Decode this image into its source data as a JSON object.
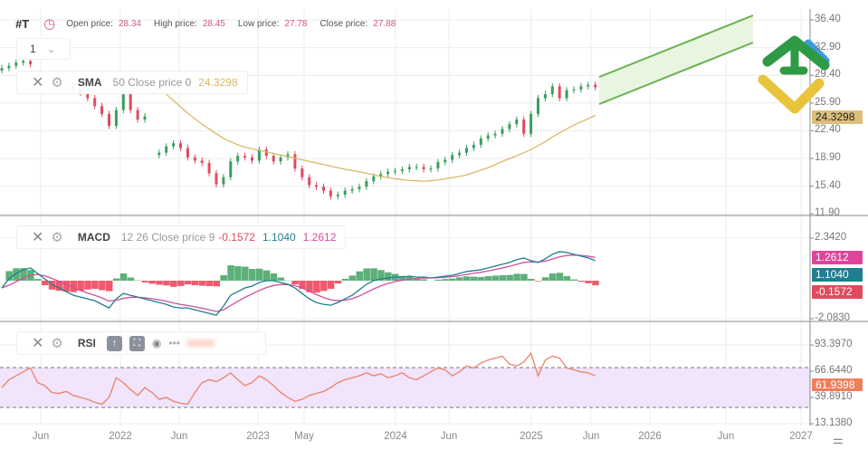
{
  "header": {
    "symbol": "#T",
    "open_label": "Open price:",
    "open": "28.34",
    "high_label": "High price:",
    "high": "28.45",
    "low_label": "Low price:",
    "low": "27.78",
    "close_label": "Close price:",
    "close": "27.88"
  },
  "timeframe": {
    "value": "1"
  },
  "indicators": {
    "sma": {
      "name": "SMA",
      "params": "50 Close price 0",
      "value": "24.3298"
    },
    "macd": {
      "name": "MACD",
      "params": "12 26 Close price 9",
      "hist": "-0.1572",
      "macd": "1.1040",
      "signal": "1.2612"
    },
    "rsi": {
      "name": "RSI"
    }
  },
  "price_axis": [
    "36.40",
    "32.90",
    "29.40",
    "25.90",
    "22.40",
    "18.90",
    "15.40",
    "11.90"
  ],
  "macd_axis": [
    "2.3420",
    "-2.0830"
  ],
  "rsi_axis": [
    "93.3970",
    "66.6440",
    "39.8910",
    "13.1380"
  ],
  "tags": {
    "sma": "24.3298",
    "macd_signal": "1.2612",
    "macd": "1.1040",
    "hist": "-0.1572",
    "rsi": "61.9398"
  },
  "time_axis": [
    "Jun",
    "2022",
    "Jun",
    "2023",
    "May",
    "2024",
    "Jun",
    "2025",
    "Jun",
    "2026",
    "Jun",
    "2027"
  ],
  "colors": {
    "up": "#3a9e5e",
    "down": "#e04a5f",
    "sma": "#d9b86a",
    "macd": "#1e7f8f",
    "signal": "#d0509a",
    "rsi": "#e8846a",
    "rsi_band": "#f1e4fb",
    "channel": "#6ab04c"
  },
  "chart_data": [
    {
      "type": "candlestick",
      "title": "#T",
      "ylim": [
        11.9,
        36.4
      ],
      "close": [
        30.3,
        30.6,
        31,
        31.2,
        30.8,
        null,
        null,
        null,
        null,
        null,
        28,
        27.2,
        26.5,
        25.5,
        24.5,
        23,
        25,
        27,
        25,
        23.8,
        24.2,
        null,
        19.6,
        20.4,
        20.8,
        20.2,
        19,
        18.6,
        18.3,
        17,
        15.6,
        16.5,
        18.5,
        19.2,
        19,
        18.6,
        20,
        19.2,
        18.5,
        19,
        19.4,
        17.6,
        16.5,
        15.5,
        15.3,
        14.8,
        14.1,
        14.3,
        14.8,
        15,
        15.3,
        16,
        16.6,
        16.9,
        17.2,
        17.3,
        17.5,
        17.8,
        17.8,
        17.5,
        17.6,
        18.4,
        18.7,
        19.3,
        19.6,
        20.2,
        20.6,
        21.4,
        21.8,
        22,
        22.6,
        23.2,
        23.8,
        22,
        24.5,
        26.5,
        27,
        28,
        26.5,
        27.5,
        27.6,
        28,
        28.2,
        27.88
      ],
      "sma_50": [
        null,
        null,
        null,
        null,
        null,
        null,
        null,
        null,
        null,
        null,
        null,
        null,
        null,
        null,
        null,
        null,
        null,
        null,
        null,
        null,
        null,
        null,
        27.8,
        27,
        26.2,
        25.4,
        24.6,
        23.9,
        23.2,
        22.6,
        22,
        21.4,
        21,
        20.6,
        20.3,
        20.1,
        19.9,
        19.7,
        19.5,
        19.3,
        19.1,
        18.9,
        18.7,
        18.5,
        18.3,
        18.1,
        17.9,
        17.7,
        17.5,
        17.35,
        17.2,
        17,
        16.8,
        16.6,
        16.45,
        16.3,
        16.2,
        16.1,
        16.05,
        16,
        16.05,
        16.15,
        16.3,
        16.45,
        16.6,
        16.8,
        17.1,
        17.4,
        17.7,
        18.1,
        18.5,
        18.85,
        19.2,
        19.6,
        20,
        20.5,
        21,
        21.6,
        22.1,
        22.6,
        23.1,
        23.5,
        23.9,
        24.3298
      ]
    },
    {
      "type": "line",
      "title": "MACD",
      "ylim": [
        -2.083,
        2.342
      ],
      "macd": [
        -0.4,
        0.1,
        0.4,
        0.6,
        0.7,
        0.4,
        0.1,
        -0.2,
        -0.4,
        -0.6,
        -0.8,
        -0.9,
        -1.0,
        -1.1,
        -1.3,
        -1.5,
        -1.0,
        -0.7,
        -0.8,
        -0.9,
        -1.0,
        -1.1,
        -1.2,
        -1.3,
        -1.45,
        -1.5,
        -1.5,
        -1.6,
        -1.7,
        -1.8,
        -1.9,
        -1.4,
        -0.8,
        -0.6,
        -0.4,
        -0.3,
        -0.1,
        0.0,
        0.0,
        -0.1,
        -0.2,
        -0.4,
        -0.7,
        -1.0,
        -1.2,
        -1.3,
        -1.35,
        -1.2,
        -1.0,
        -0.8,
        -0.5,
        -0.2,
        0.0,
        0.1,
        0.15,
        0.2,
        0.2,
        0.25,
        0.2,
        0.2,
        0.15,
        0.2,
        0.25,
        0.3,
        0.4,
        0.5,
        0.55,
        0.6,
        0.7,
        0.8,
        0.9,
        1.0,
        1.15,
        1.25,
        1.1,
        1.0,
        1.2,
        1.45,
        1.6,
        1.55,
        1.45,
        1.35,
        1.25,
        1.104
      ]
    },
    {
      "type": "line",
      "title": "RSI",
      "ylim": [
        13.138,
        93.397
      ],
      "bands": [
        30,
        70
      ],
      "rsi": [
        50,
        58,
        62,
        66,
        70,
        55,
        52,
        45,
        44,
        46,
        42,
        40,
        38,
        35,
        33,
        40,
        60,
        55,
        48,
        42,
        50,
        45,
        38,
        40,
        36,
        34,
        33,
        45,
        55,
        58,
        56,
        60,
        65,
        58,
        52,
        55,
        62,
        58,
        52,
        45,
        40,
        36,
        38,
        42,
        44,
        46,
        50,
        55,
        58,
        60,
        62,
        65,
        62,
        64,
        60,
        62,
        65,
        60,
        58,
        62,
        66,
        70,
        68,
        62,
        66,
        72,
        70,
        75,
        78,
        80,
        82,
        74,
        72,
        76,
        85,
        62,
        78,
        82,
        80,
        70,
        68,
        66,
        65,
        61.94
      ]
    }
  ]
}
